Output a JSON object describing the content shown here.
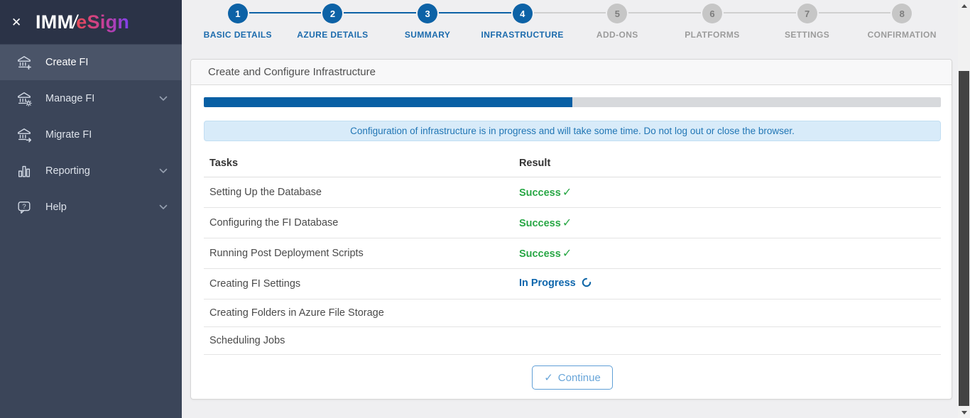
{
  "sidebar": {
    "logo": {
      "imm": "IMM",
      "slash": "/",
      "esign": "eSign"
    },
    "close_icon": "close-icon",
    "items": [
      {
        "label": "Create FI",
        "icon": "bank-plus-icon",
        "active": true,
        "chevron": false
      },
      {
        "label": "Manage FI",
        "icon": "bank-gear-icon",
        "active": false,
        "chevron": true
      },
      {
        "label": "Migrate FI",
        "icon": "bank-arrow-icon",
        "active": false,
        "chevron": false
      },
      {
        "label": "Reporting",
        "icon": "bar-chart-icon",
        "active": false,
        "chevron": true
      },
      {
        "label": "Help",
        "icon": "help-bubble-icon",
        "active": false,
        "chevron": true
      }
    ]
  },
  "stepper": {
    "steps": [
      {
        "number": "1",
        "label": "BASIC DETAILS",
        "state": "active"
      },
      {
        "number": "2",
        "label": "AZURE DETAILS",
        "state": "active"
      },
      {
        "number": "3",
        "label": "SUMMARY",
        "state": "active"
      },
      {
        "number": "4",
        "label": "INFRASTRUCTURE",
        "state": "active"
      },
      {
        "number": "5",
        "label": "ADD-ONS",
        "state": "inactive"
      },
      {
        "number": "6",
        "label": "PLATFORMS",
        "state": "inactive"
      },
      {
        "number": "7",
        "label": "SETTINGS",
        "state": "inactive"
      },
      {
        "number": "8",
        "label": "CONFIRMATION",
        "state": "inactive"
      }
    ]
  },
  "panel": {
    "title": "Create and Configure Infrastructure",
    "progress_percent": 50,
    "notice": "Configuration of infrastructure is in progress and will take some time. Do not log out or close the browser.",
    "table": {
      "headers": [
        "Tasks",
        "Result"
      ],
      "rows": [
        {
          "task": "Setting Up the Database",
          "result": "Success",
          "status": "success"
        },
        {
          "task": "Configuring the FI Database",
          "result": "Success",
          "status": "success"
        },
        {
          "task": "Running Post Deployment Scripts",
          "result": "Success",
          "status": "success"
        },
        {
          "task": "Creating FI Settings",
          "result": "In Progress",
          "status": "in-progress"
        },
        {
          "task": "Creating Folders in Azure File Storage",
          "result": "",
          "status": "pending"
        },
        {
          "task": "Scheduling Jobs",
          "result": "",
          "status": "pending"
        }
      ]
    },
    "continue_label": "Continue",
    "continue_check": "✓",
    "success_check": "✓"
  },
  "colors": {
    "accent_blue": "#0d62a6",
    "success_green": "#28a745",
    "in_progress_blue": "#0f67ad",
    "notice_bg": "#d8ebf9",
    "notice_text": "#2176b5",
    "sidebar_bg": "#3b4559",
    "sidebar_header_bg": "#2b3347",
    "sidebar_active_bg": "#4a5468",
    "logo_gradient_start": "#e84a55",
    "logo_gradient_end": "#7e40ee"
  }
}
